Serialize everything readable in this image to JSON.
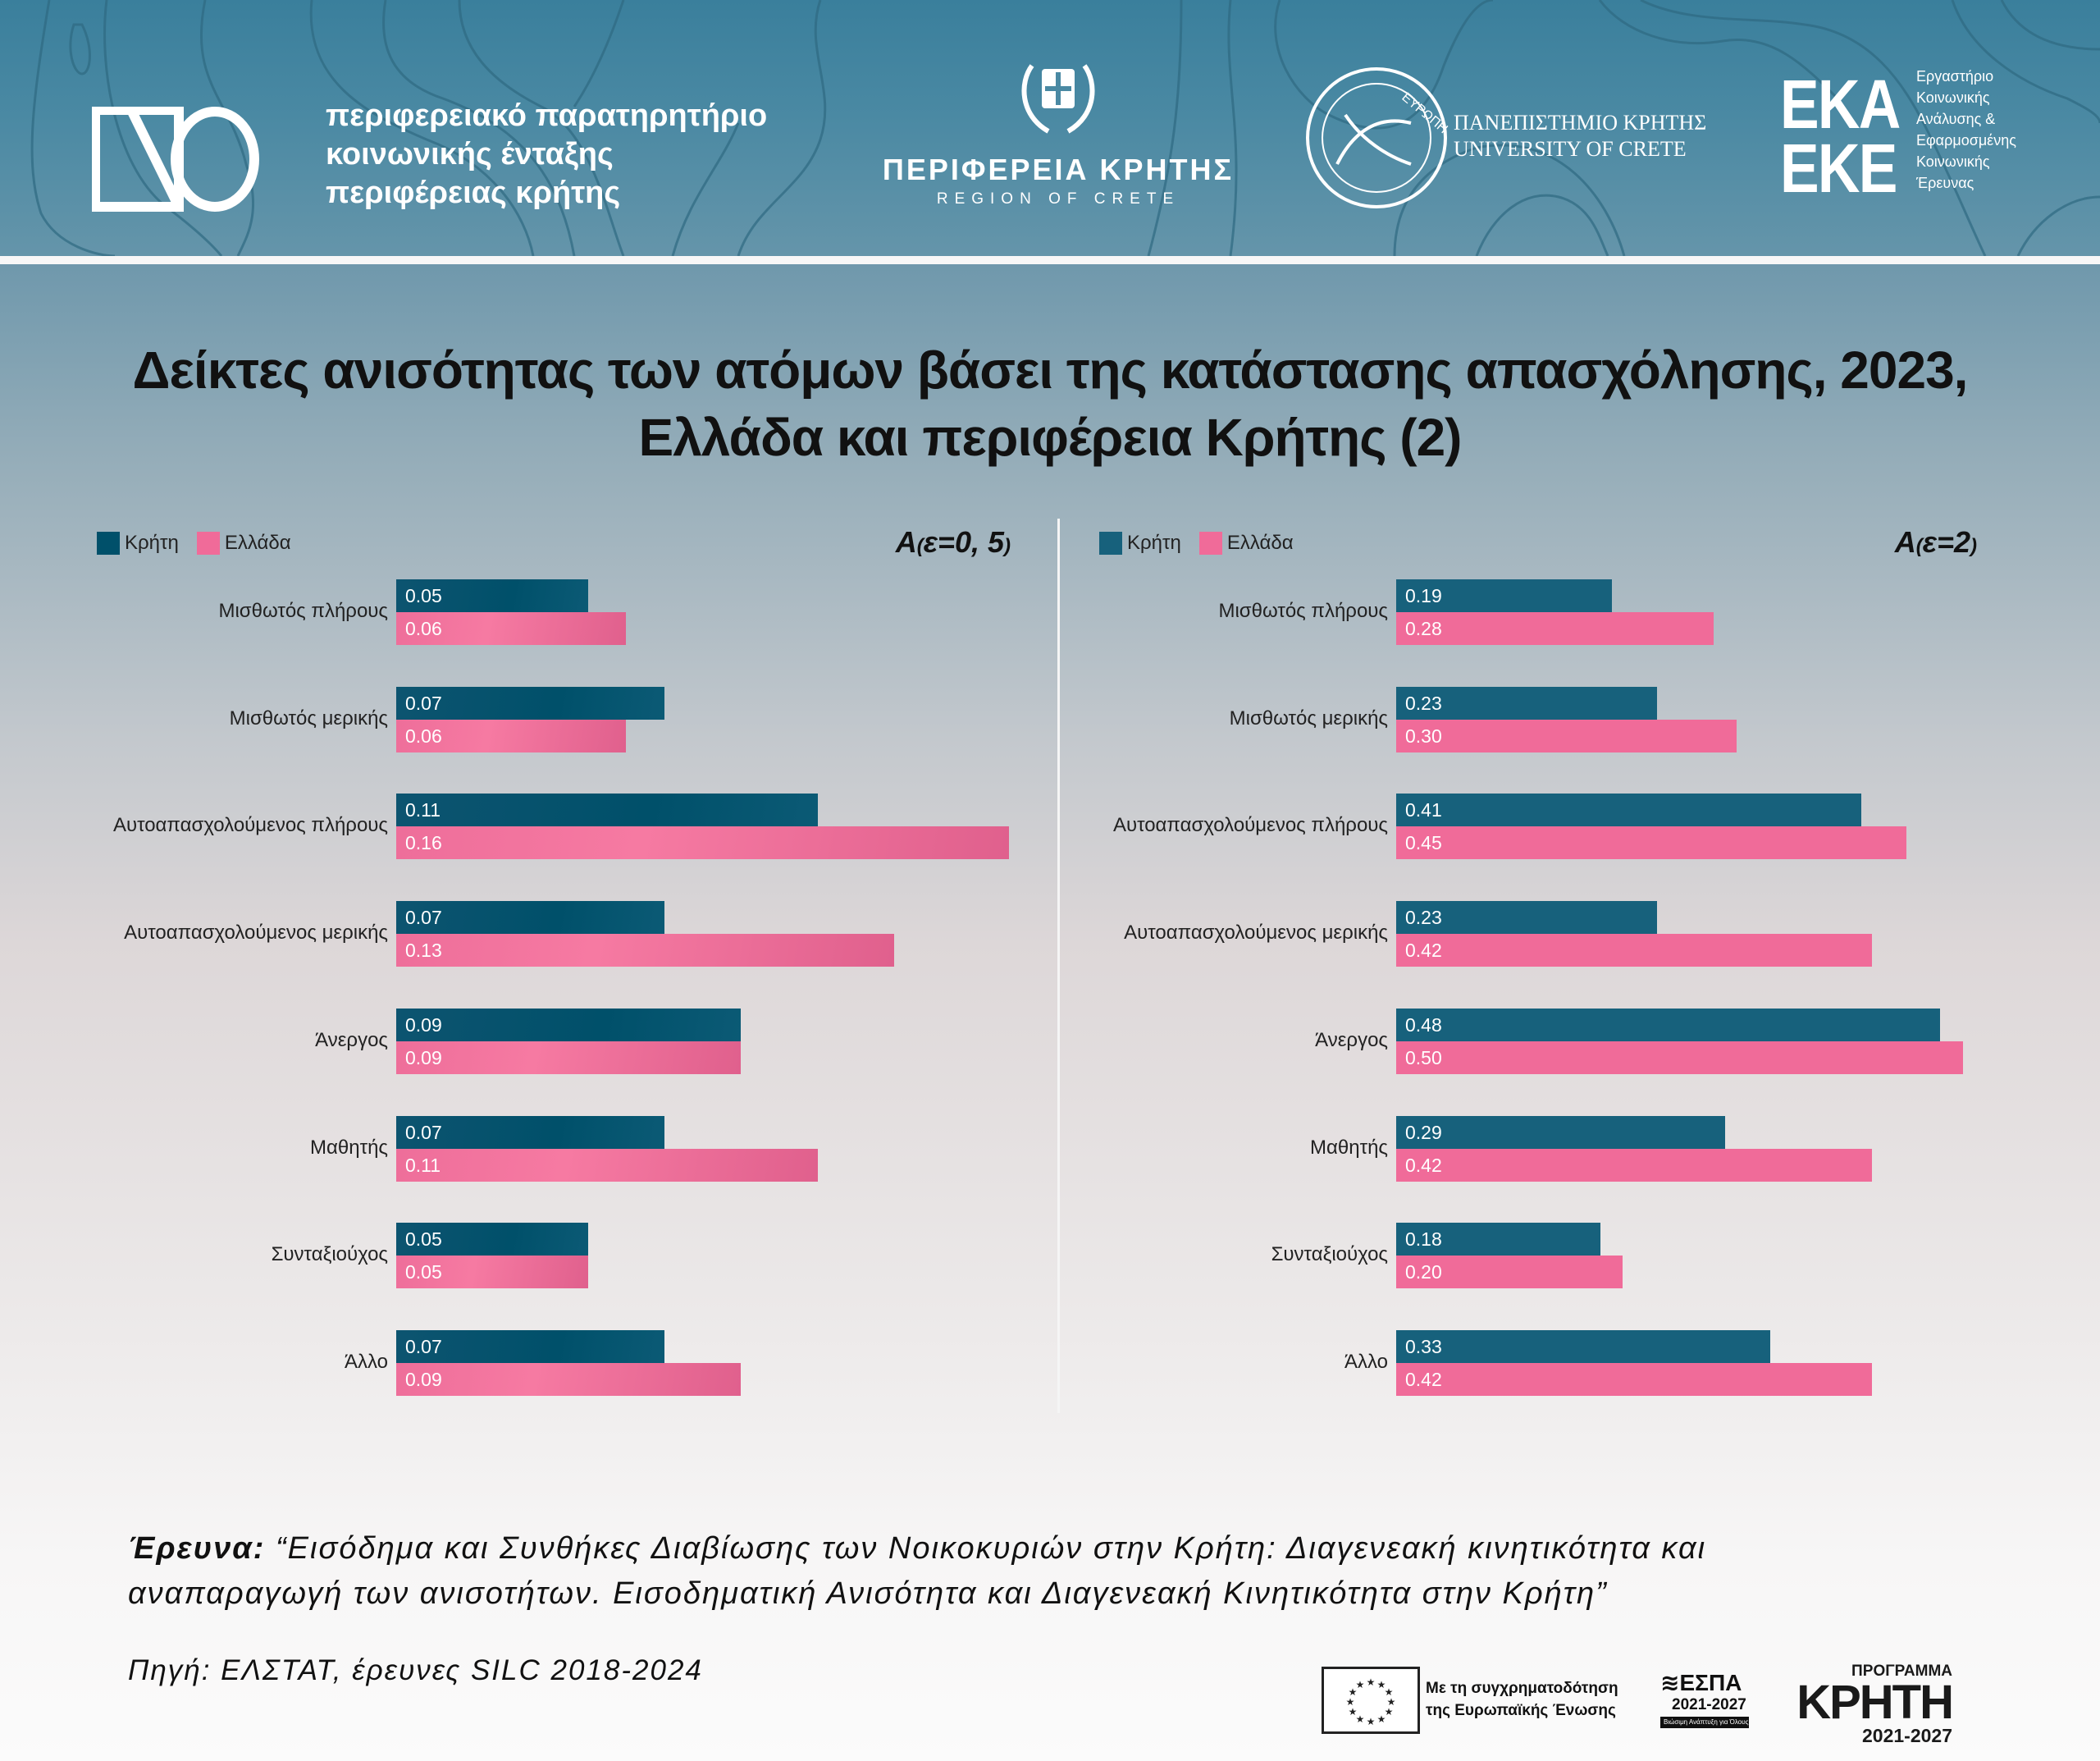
{
  "header": {
    "observatory_lines": [
      "περιφερειακό παρατηρητήριο",
      "κοινωνικής ένταξης",
      "περιφέρειας κρήτης"
    ],
    "region_name": "ΠΕΡΙΦΕΡΕΙΑ ΚΡΗΤΗΣ",
    "region_sub": "REGION OF CRETE",
    "university_lines": [
      "ΠΑΝΕΠΙΣΤΗΜΙΟ ΚΡΗΤΗΣ",
      "UNIVERSITY OF CRETE"
    ],
    "seal_text": "ΕΥΡΩΠΗ",
    "lab_acronym_lines": [
      "ΕΚΑ",
      "ΕΚΕ"
    ],
    "lab_name_lines": [
      "Εργαστήριο",
      "Κοινωνικής",
      "Ανάλυσης &",
      "Εφαρμοσμένης",
      "Κοινωνικής",
      "Έρευνας"
    ],
    "header_color": "#3a7f9c"
  },
  "title_lines": [
    "Δείκτες ανισότητας των ατόμων βάσει της κατάστασης απασχόλησης, 2023,",
    "Ελλάδα και περιφέρεια Κρήτης (2)"
  ],
  "chart_data": [
    {
      "type": "bar",
      "orientation": "horizontal",
      "title": "A(ε=0,5)",
      "measure_main": "A",
      "measure_param": "ε=0, 5",
      "legend_position": "top-left",
      "grid": false,
      "xlim": [
        0,
        0.16
      ],
      "categories": [
        "Μισθωτός πλήρους",
        "Μισθωτός μερικής",
        "Αυτοαπασχολούμενος πλήρους",
        "Αυτοαπασχολούμενος μερικής",
        "Άνεργος",
        "Μαθητής",
        "Συνταξιούχος",
        "Άλλο"
      ],
      "series": [
        {
          "name": "Κρήτη",
          "color": "#00506a",
          "values": [
            0.05,
            0.07,
            0.11,
            0.07,
            0.09,
            0.07,
            0.05,
            0.07
          ],
          "labels": [
            "0.05",
            "0.07",
            "0.11",
            "0.07",
            "0.09",
            "0.07",
            "0.05",
            "0.07"
          ]
        },
        {
          "name": "Ελλάδα",
          "color": "#f06b99",
          "values": [
            0.06,
            0.06,
            0.16,
            0.13,
            0.09,
            0.11,
            0.05,
            0.09
          ],
          "labels": [
            "0.06",
            "0.06",
            "0.16",
            "0.13",
            "0.09",
            "0.11",
            "0.05",
            "0.09"
          ]
        }
      ]
    },
    {
      "type": "bar",
      "orientation": "horizontal",
      "title": "A(ε=2)",
      "measure_main": "A",
      "measure_param": "ε=2",
      "legend_position": "top-left",
      "grid": false,
      "xlim": [
        0,
        0.5
      ],
      "categories": [
        "Μισθωτός πλήρους",
        "Μισθωτός μερικής",
        "Αυτοαπασχολούμενος πλήρους",
        "Αυτοαπασχολούμενος μερικής",
        "Άνεργος",
        "Μαθητής",
        "Συνταξιούχος",
        "Άλλο"
      ],
      "series": [
        {
          "name": "Κρήτη",
          "color": "#17617c",
          "values": [
            0.19,
            0.23,
            0.41,
            0.23,
            0.48,
            0.29,
            0.18,
            0.33
          ],
          "labels": [
            "0.19",
            "0.23",
            "0.41",
            "0.23",
            "0.48",
            "0.29",
            "0.18",
            "0.33"
          ]
        },
        {
          "name": "Ελλάδα",
          "color": "#f06b99",
          "values": [
            0.28,
            0.3,
            0.45,
            0.42,
            0.5,
            0.42,
            0.2,
            0.42
          ],
          "labels": [
            "0.28",
            "0.30",
            "0.45",
            "0.42",
            "0.50",
            "0.42",
            "0.20",
            "0.42"
          ]
        }
      ]
    }
  ],
  "footer": {
    "research_label": "Έρευνα:",
    "research_text_line1": " “Εισόδημα και Συνθήκες Διαβίωσης των Νοικοκυριών στην Κρήτη: Διαγενεακή κινητικότητα και",
    "research_text_line2": "αναπαραγωγή των ανισοτήτων. Εισοδηματική Ανισότητα και Διαγενεακή  Κινητικότητα στην Κρήτη”",
    "source": "Πηγή: ΕΛΣΤΑΤ, έρευνες SILC 2018-2024",
    "eu_text_lines": [
      "Με τη συγχρηματοδότηση",
      "της Ευρωπαϊκής Ένωσης"
    ],
    "espa_title": "ΕΣΠΑ",
    "espa_years": "2021-2027",
    "espa_tagline": "Βιώσιμη Ανάπτυξη για Όλους",
    "program_label": "ΠΡΟΓΡΑΜΜΑ",
    "program_name": "ΚΡΗΤΗ",
    "program_years": "2021-2027"
  }
}
